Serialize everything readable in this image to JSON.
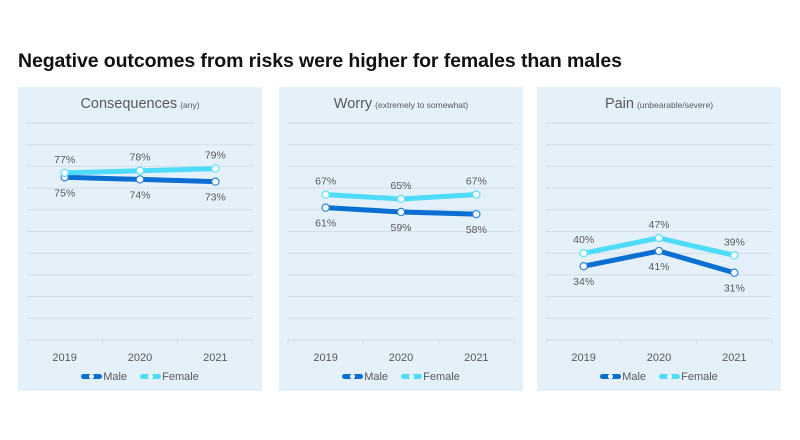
{
  "title": "Negative outcomes from risks were higher for females than males",
  "colors": {
    "male": "#0a6fd0",
    "female": "#4fdcfa",
    "panel_bg": "#e4f0fa",
    "grid": "#d6dde6",
    "text": "#595959"
  },
  "chart_data": [
    {
      "type": "line",
      "title": "Consequences",
      "subtitle": "(any)",
      "categories": [
        "2019",
        "2020",
        "2021"
      ],
      "ylim": [
        0,
        100
      ],
      "grid": true,
      "legend_position": "bottom",
      "series": [
        {
          "name": "Male",
          "values": [
            75,
            74,
            73
          ],
          "labels": [
            "75%",
            "74%",
            "73%"
          ]
        },
        {
          "name": "Female",
          "values": [
            77,
            78,
            79
          ],
          "labels": [
            "77%",
            "78%",
            "79%"
          ]
        }
      ]
    },
    {
      "type": "line",
      "title": "Worry",
      "subtitle": "(extremely to somewhat)",
      "categories": [
        "2019",
        "2020",
        "2021"
      ],
      "ylim": [
        0,
        100
      ],
      "grid": true,
      "legend_position": "bottom",
      "series": [
        {
          "name": "Male",
          "values": [
            61,
            59,
            58
          ],
          "labels": [
            "61%",
            "59%",
            "58%"
          ]
        },
        {
          "name": "Female",
          "values": [
            67,
            65,
            67
          ],
          "labels": [
            "67%",
            "65%",
            "67%"
          ]
        }
      ]
    },
    {
      "type": "line",
      "title": "Pain",
      "subtitle": "(unbearable/severe)",
      "categories": [
        "2019",
        "2020",
        "2021"
      ],
      "ylim": [
        0,
        100
      ],
      "grid": true,
      "legend_position": "bottom",
      "series": [
        {
          "name": "Male",
          "values": [
            34,
            41,
            31
          ],
          "labels": [
            "34%",
            "41%",
            "31%"
          ]
        },
        {
          "name": "Female",
          "values": [
            40,
            47,
            39
          ],
          "labels": [
            "40%",
            "47%",
            "39%"
          ]
        }
      ]
    }
  ]
}
